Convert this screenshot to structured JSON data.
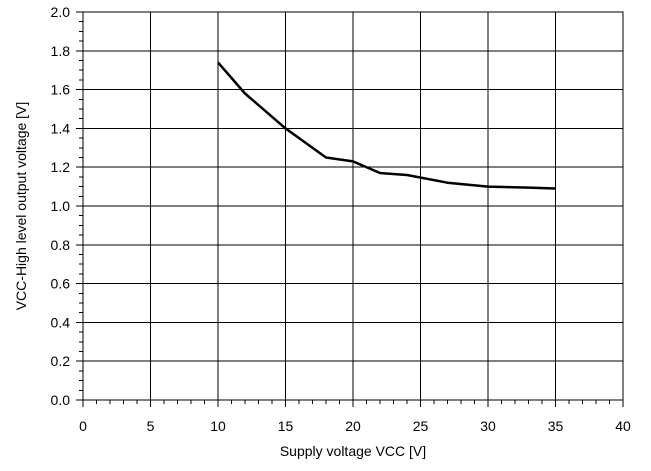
{
  "chart_data": {
    "type": "line",
    "title": "",
    "xlabel": "Supply voltage VCC [V]",
    "ylabel": "VCC-High level output voltage [V]",
    "xlim": [
      0,
      40
    ],
    "ylim": [
      0.0,
      2.0
    ],
    "x_ticks": [
      "0",
      "5",
      "10",
      "15",
      "20",
      "25",
      "30",
      "35",
      "40"
    ],
    "y_ticks": [
      "0.0",
      "0.2",
      "0.4",
      "0.6",
      "0.8",
      "1.0",
      "1.2",
      "1.4",
      "1.6",
      "1.8",
      "2.0"
    ],
    "grid": true,
    "series": [
      {
        "x": [
          10,
          12,
          15,
          18,
          20,
          22,
          24,
          27,
          30,
          33,
          35
        ],
        "y": [
          1.74,
          1.58,
          1.4,
          1.25,
          1.23,
          1.17,
          1.16,
          1.12,
          1.1,
          1.095,
          1.09
        ]
      }
    ],
    "colors": {
      "line": "#000000",
      "grid": "#000000",
      "background": "#ffffff"
    }
  }
}
